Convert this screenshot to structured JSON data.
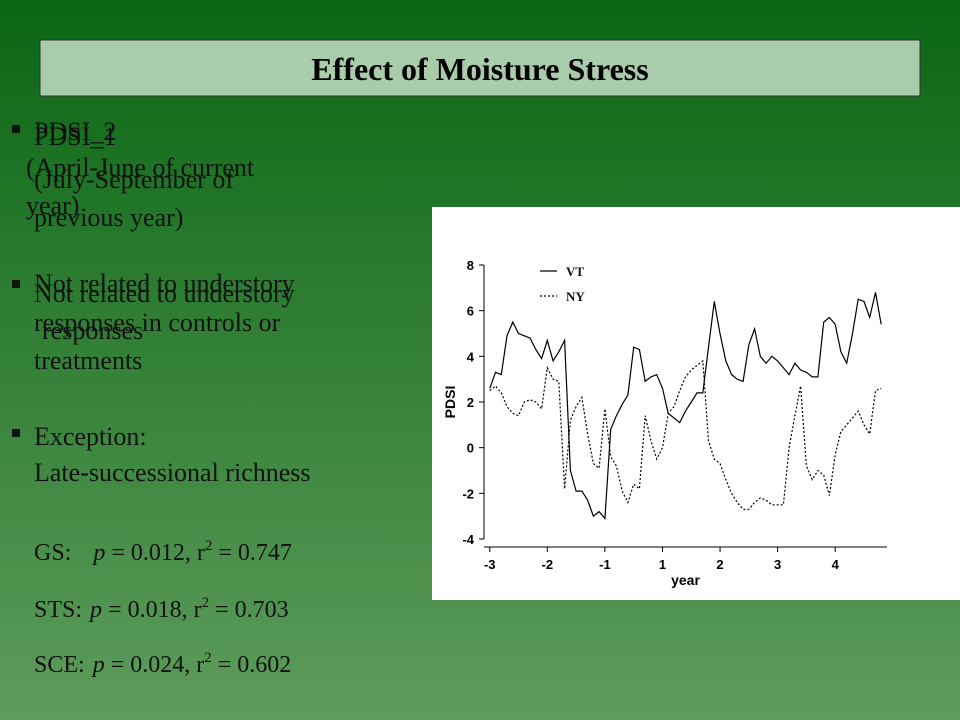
{
  "slide": {
    "title": "Effect of Moisture Stress",
    "layer_a": [
      "PDSI_2",
      "(April-June of current",
      "year)"
    ],
    "layer_b": [
      "PDSI_1",
      "(July-September of",
      "previous year)"
    ],
    "layer_c": [
      "Not related to understory",
      "responses in controls or",
      "treatments"
    ],
    "layer_d": [
      "Not related to understory",
      "responses"
    ],
    "exception": [
      "Exception:",
      "Late-successional richness"
    ],
    "stats": [
      {
        "label": "GS:",
        "p_symbol": "p",
        "p_text": " = 0.012, r",
        "sup": "2",
        "r2_text": " = 0.747"
      },
      {
        "label": "STS:",
        "p_symbol": "p",
        "p_text": " = 0.018, r",
        "sup": "2",
        "r2_text": " = 0.703"
      },
      {
        "label": "SCE:",
        "p_symbol": "p",
        "p_text": " = 0.024, r",
        "sup": "2",
        "r2_text": " = 0.602"
      }
    ]
  },
  "chart_data": {
    "type": "line",
    "x_label": "year",
    "y_label": "PDSI",
    "legend": "upper left",
    "x": [
      -3,
      -2.9,
      -2.8,
      -2.7,
      -2.6,
      -2.5,
      -2.4,
      -2.3,
      -2.2,
      -2.1,
      -2,
      -1.9,
      -1.8,
      -1.7,
      -1.6,
      -1.5,
      -1.4,
      -1.3,
      -1.2,
      -1.1,
      -1,
      -0.9,
      -0.8,
      -0.7,
      -0.6,
      -0.5,
      -0.4,
      -0.3,
      -0.2,
      -0.1,
      0,
      0.1,
      0.2,
      0.3,
      0.4,
      0.5,
      0.6,
      0.7,
      0.8,
      0.9,
      1,
      1.1,
      1.2,
      1.3,
      1.4,
      1.5,
      1.6,
      1.7,
      1.8,
      1.9,
      2,
      2.1,
      2.2,
      2.3,
      2.4,
      2.5,
      2.6,
      2.7,
      2.8,
      2.9,
      3,
      3.1,
      3.2,
      3.3,
      3.4,
      3.5,
      3.6,
      3.7,
      3.8
    ],
    "series": [
      {
        "name": "VT",
        "color": "#000000",
        "style": "solid",
        "values": [
          2.6,
          3.3,
          3.2,
          4.9,
          5.5,
          5.0,
          4.9,
          4.8,
          4.3,
          3.9,
          4.7,
          3.8,
          4.2,
          4.7,
          -1.0,
          -1.9,
          -1.9,
          -2.3,
          -3.0,
          -2.8,
          -3.1,
          0.8,
          1.4,
          1.9,
          2.3,
          4.4,
          4.3,
          2.9,
          3.1,
          3.2,
          2.6,
          1.5,
          1.3,
          1.1,
          1.6,
          2.0,
          2.4,
          2.4,
          4.4,
          6.4,
          5.0,
          3.8,
          3.2,
          3.0,
          2.9,
          4.5,
          5.2,
          4.0,
          3.7,
          4.0,
          3.8,
          3.5,
          3.2,
          3.7,
          3.4,
          3.3,
          3.1,
          3.1,
          5.5,
          5.7,
          5.4,
          4.2,
          3.7,
          5.0,
          6.5,
          6.4,
          5.7,
          6.8,
          5.4
        ]
      },
      {
        "name": "NY",
        "color": "#000000",
        "style": "dotted",
        "values": [
          2.5,
          2.7,
          2.4,
          1.8,
          1.5,
          1.4,
          2.0,
          2.1,
          2.0,
          1.7,
          3.5,
          3.0,
          2.9,
          -1.8,
          1.2,
          1.8,
          2.2,
          0.6,
          -0.7,
          -0.9,
          1.7,
          -0.4,
          -0.8,
          -1.9,
          -2.4,
          -1.6,
          -1.8,
          1.4,
          0.3,
          -0.5,
          0.0,
          1.5,
          1.8,
          2.5,
          3.1,
          3.4,
          3.6,
          3.8,
          0.3,
          -0.5,
          -0.7,
          -1.4,
          -2.0,
          -2.4,
          -2.7,
          -2.7,
          -2.4,
          -2.2,
          -2.3,
          -2.5,
          -2.5,
          -2.5,
          0.0,
          1.4,
          2.7,
          -0.8,
          -1.4,
          -1.0,
          -1.2,
          -2.1,
          -0.3,
          0.7,
          1.0,
          1.3,
          1.6,
          1.0,
          0.6,
          2.5,
          2.6
        ]
      }
    ],
    "xlim": [
      -3.1,
      3.9
    ],
    "xticks": [
      -3,
      -2,
      -1,
      {
        "value": 0,
        "label": "1"
      },
      {
        "value": 1,
        "label": "2"
      },
      {
        "value": 2,
        "label": "3"
      },
      {
        "value": 3,
        "label": "4"
      }
    ],
    "ylim": [
      -4,
      8
    ],
    "yticks": [
      -4,
      -2,
      0,
      2,
      4,
      6,
      8
    ],
    "grid": false
  }
}
